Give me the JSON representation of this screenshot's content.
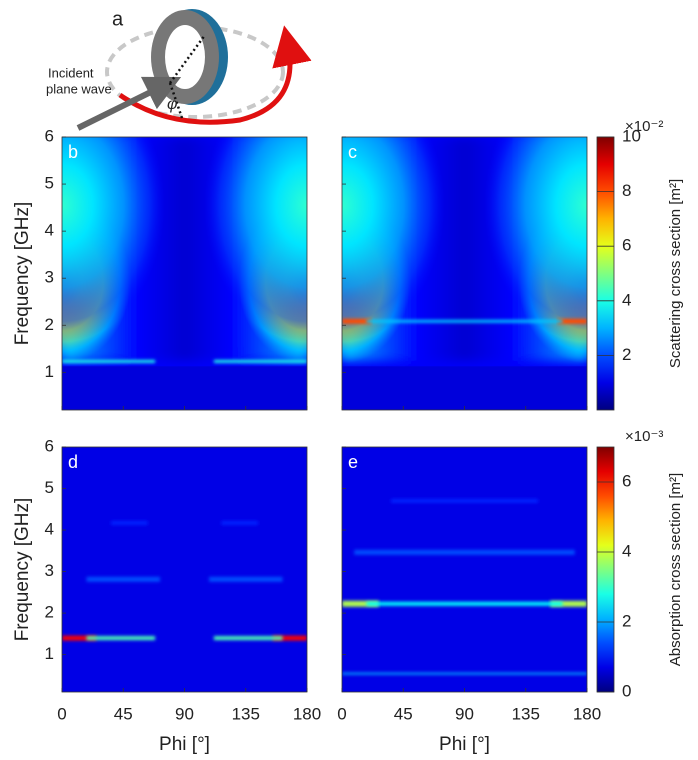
{
  "figure_a": {
    "label": "a",
    "annotation_lines": [
      "Incident",
      "plane wave"
    ],
    "angle": "φ"
  },
  "chart_data": [
    {
      "type": "heatmap",
      "panel": "b",
      "ylabel": "Frequency [GHz]",
      "xlim": [
        0,
        180
      ],
      "ylim": [
        0.2,
        6
      ],
      "yticks": [
        1,
        2,
        3,
        4,
        5,
        6
      ],
      "xticks": [
        0,
        45,
        90,
        135,
        180
      ],
      "show_ytick_labels": true,
      "show_xtick_labels": false
    },
    {
      "type": "heatmap",
      "panel": "c",
      "xlim": [
        0,
        180
      ],
      "ylim": [
        0.2,
        6
      ],
      "yticks": [
        1,
        2,
        3,
        4,
        5,
        6
      ],
      "xticks": [
        0,
        45,
        90,
        135,
        180
      ],
      "show_ytick_labels": false,
      "show_xtick_labels": false
    },
    {
      "type": "heatmap",
      "panel": "d",
      "ylabel": "Frequency [GHz]",
      "xlabel": "Phi [°]",
      "xlim": [
        0,
        180
      ],
      "ylim": [
        0.1,
        6
      ],
      "yticks": [
        1,
        2,
        3,
        4,
        5,
        6
      ],
      "xticks": [
        0,
        45,
        90,
        135,
        180
      ],
      "show_ytick_labels": true,
      "show_xtick_labels": true
    },
    {
      "type": "heatmap",
      "panel": "e",
      "xlabel": "Phi [°]",
      "xlim": [
        0,
        180
      ],
      "ylim": [
        0.1,
        6
      ],
      "yticks": [
        1,
        2,
        3,
        4,
        5,
        6
      ],
      "xticks": [
        0,
        45,
        90,
        135,
        180
      ],
      "show_ytick_labels": false,
      "show_xtick_labels": true
    },
    {
      "type": "colorbar",
      "label": "Scattering cross section [m²]",
      "scale_label": "×10⁻²",
      "ylim": [
        0,
        10
      ],
      "yticks": [
        2,
        4,
        6,
        8,
        10
      ]
    },
    {
      "type": "colorbar",
      "label": "Absorption cross section [m²]",
      "scale_label": "×10⁻³",
      "ylim": [
        0,
        7
      ],
      "yticks": [
        0,
        2,
        4,
        6
      ]
    }
  ]
}
